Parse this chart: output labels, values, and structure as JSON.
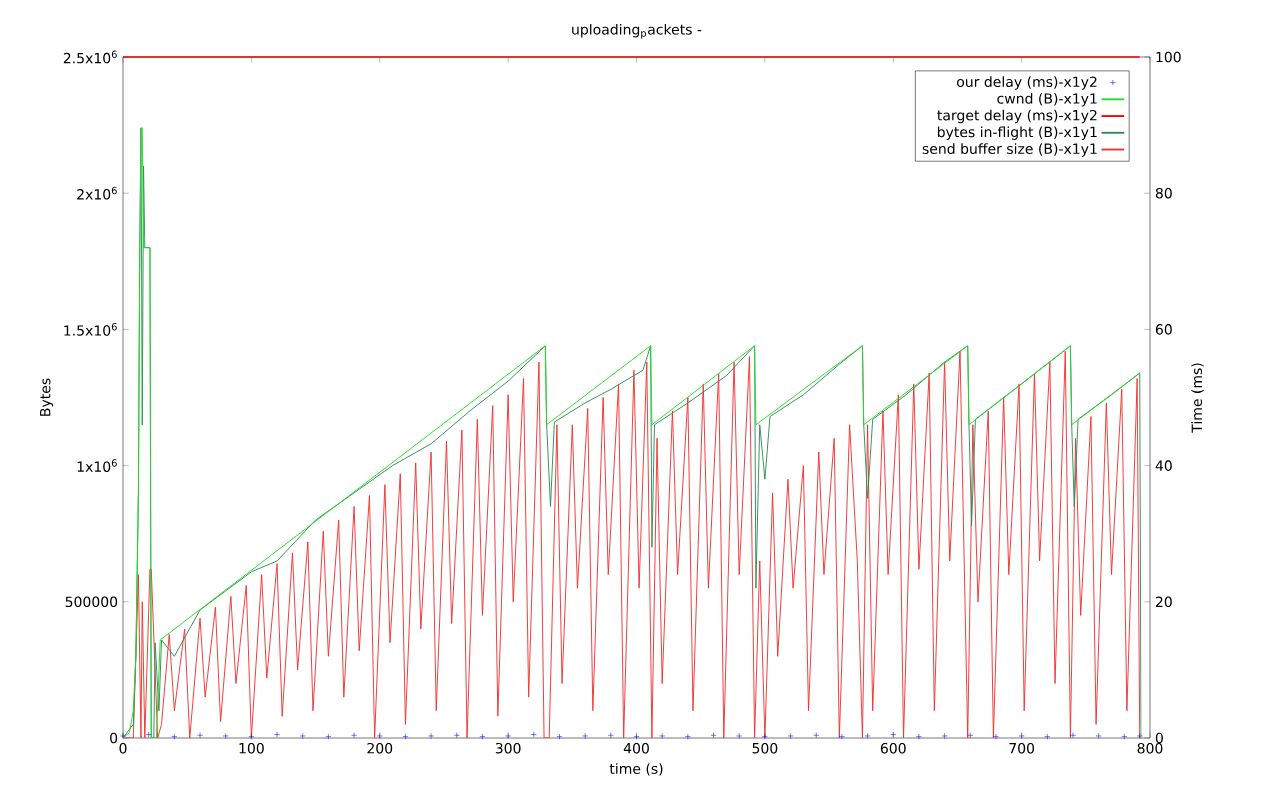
{
  "chart_data": {
    "type": "line",
    "title": "uploading$_{p}$ackets -",
    "xlabel": "time (s)",
    "ylabel": "Bytes",
    "y2label": "Time (ms)",
    "xlim": [
      0,
      800
    ],
    "xticks": [
      0,
      100,
      200,
      300,
      400,
      500,
      600,
      700,
      800
    ],
    "ylim": [
      0,
      2500000
    ],
    "yticks": [
      0,
      500000,
      {
        "value": 1000000,
        "label": "1x10$^{6}$"
      },
      {
        "value": 1500000,
        "label": "1.5x10$^{6}$"
      },
      {
        "value": 2000000,
        "label": "2x10$^{6}$"
      },
      {
        "value": 2500000,
        "label": "2.5x10$^{6}$"
      }
    ],
    "y2lim": [
      0,
      100
    ],
    "y2ticks": [
      0,
      20,
      40,
      60,
      80,
      100
    ],
    "legend": "top right",
    "series": [
      {
        "name": "our delay (ms)-x1y2",
        "type": "scatter",
        "marker": "cross",
        "axis": "y2",
        "color": "#0000ff",
        "x": [
          0,
          20,
          40,
          60,
          80,
          100,
          120,
          140,
          160,
          180,
          200,
          220,
          240,
          260,
          280,
          300,
          320,
          340,
          360,
          380,
          400,
          420,
          440,
          460,
          480,
          500,
          520,
          540,
          560,
          580,
          600,
          620,
          640,
          660,
          680,
          700,
          720,
          740,
          760,
          780,
          792
        ],
        "values": [
          0.3,
          0.5,
          0.2,
          0.4,
          0.3,
          0.2,
          0.5,
          0.3,
          0.2,
          0.4,
          0.3,
          0.2,
          0.3,
          0.4,
          0.2,
          0.3,
          0.5,
          0.2,
          0.3,
          0.4,
          0.2,
          0.3,
          0.2,
          0.4,
          0.3,
          0.2,
          0.3,
          0.4,
          0.2,
          0.3,
          0.5,
          0.2,
          0.3,
          0.4,
          0.2,
          0.3,
          0.2,
          0.4,
          0.3,
          0.2,
          0.3
        ]
      },
      {
        "name": "cwnd (B)-x1y1",
        "color": "#22dd22",
        "x": [
          0,
          5,
          8,
          10,
          11,
          12,
          13,
          14,
          15,
          16,
          21,
          22,
          26,
          29,
          329,
          330,
          411,
          412,
          492,
          493,
          576,
          577,
          658,
          659,
          738,
          739,
          792
        ],
        "values": [
          0,
          20000,
          100000,
          300000,
          600000,
          900000,
          1700000,
          2240000,
          2240000,
          1800000,
          1800000,
          0,
          0,
          360000,
          1440000,
          1150000,
          1440000,
          1150000,
          1440000,
          1150000,
          1440000,
          1150000,
          1440000,
          1150000,
          1440000,
          1150000,
          1340000
        ]
      },
      {
        "name": "target delay (ms)-x1y2",
        "axis": "y2",
        "color": "#ff0000",
        "x": [
          0,
          792
        ],
        "values": [
          100,
          100
        ]
      },
      {
        "name": "bytes in-flight (B)-x1y1",
        "color": "#2e8b57",
        "x": [
          0,
          8,
          10,
          12,
          13,
          14,
          15,
          16,
          17,
          21,
          22,
          24,
          25,
          28,
          30,
          40,
          60,
          80,
          100,
          120,
          150,
          180,
          210,
          240,
          270,
          300,
          329,
          330,
          333,
          336,
          360,
          380,
          405,
          411,
          412,
          414,
          440,
          470,
          492,
          493,
          496,
          500,
          504,
          530,
          560,
          576,
          577,
          580,
          584,
          610,
          640,
          658,
          659,
          661,
          664,
          700,
          738,
          739,
          741,
          744,
          770,
          792,
          793
        ],
        "values": [
          0,
          50000,
          300000,
          900000,
          1800000,
          2240000,
          1150000,
          2100000,
          1800000,
          1800000,
          0,
          0,
          350000,
          100000,
          360000,
          300000,
          470000,
          540000,
          610000,
          650000,
          800000,
          900000,
          1000000,
          1080000,
          1200000,
          1310000,
          1440000,
          1150000,
          850000,
          1160000,
          1230000,
          1280000,
          1350000,
          1440000,
          700000,
          1150000,
          1230000,
          1330000,
          1440000,
          550000,
          1150000,
          950000,
          1180000,
          1260000,
          1380000,
          1440000,
          1150000,
          880000,
          1170000,
          1260000,
          1380000,
          1440000,
          1150000,
          780000,
          1170000,
          1300000,
          1440000,
          1150000,
          850000,
          1170000,
          1260000,
          1340000,
          0
        ]
      },
      {
        "name": "send buffer size (B)-x1y1",
        "color": "#f03232",
        "x": [
          0,
          8,
          12,
          14,
          15,
          17,
          21,
          22,
          27,
          30,
          36,
          40,
          48,
          52,
          60,
          64,
          72,
          76,
          84,
          88,
          96,
          100,
          108,
          112,
          120,
          124,
          132,
          136,
          144,
          148,
          156,
          160,
          168,
          172,
          180,
          184,
          192,
          196,
          204,
          208,
          216,
          220,
          228,
          232,
          240,
          244,
          252,
          256,
          264,
          268,
          276,
          280,
          288,
          292,
          300,
          304,
          312,
          316,
          324,
          328,
          332,
          338,
          342,
          350,
          354,
          362,
          366,
          374,
          378,
          386,
          390,
          398,
          402,
          408,
          412,
          416,
          420,
          428,
          432,
          440,
          444,
          452,
          456,
          464,
          468,
          476,
          480,
          488,
          492,
          496,
          500,
          506,
          510,
          518,
          522,
          530,
          534,
          542,
          546,
          554,
          558,
          566,
          572,
          576,
          580,
          584,
          592,
          596,
          604,
          608,
          616,
          620,
          628,
          632,
          640,
          644,
          652,
          658,
          662,
          666,
          674,
          678,
          686,
          690,
          698,
          702,
          710,
          714,
          722,
          726,
          734,
          738,
          742,
          746,
          754,
          758,
          766,
          770,
          778,
          782,
          790,
          792
        ],
        "values": [
          0,
          0,
          600000,
          0,
          500000,
          0,
          620000,
          620000,
          0,
          50000,
          380000,
          100000,
          400000,
          0,
          440000,
          150000,
          480000,
          60000,
          520000,
          200000,
          560000,
          0,
          600000,
          220000,
          640000,
          80000,
          680000,
          250000,
          720000,
          100000,
          760000,
          300000,
          800000,
          150000,
          850000,
          320000,
          890000,
          0,
          930000,
          350000,
          970000,
          50000,
          1010000,
          400000,
          1050000,
          100000,
          1090000,
          420000,
          1130000,
          0,
          1170000,
          450000,
          1220000,
          80000,
          1260000,
          500000,
          1320000,
          150000,
          1380000,
          0,
          0,
          1150000,
          200000,
          1150000,
          550000,
          1210000,
          100000,
          1250000,
          600000,
          1300000,
          0,
          1350000,
          550000,
          1380000,
          0,
          1100000,
          200000,
          1200000,
          600000,
          1250000,
          100000,
          1300000,
          550000,
          1340000,
          0,
          1380000,
          600000,
          1400000,
          0,
          650000,
          0,
          900000,
          300000,
          950000,
          550000,
          1000000,
          100000,
          1050000,
          600000,
          1100000,
          0,
          1150000,
          650000,
          0,
          1150000,
          100000,
          1200000,
          600000,
          1260000,
          0,
          1300000,
          620000,
          1340000,
          100000,
          1380000,
          650000,
          1420000,
          0,
          1150000,
          500000,
          1200000,
          0,
          1250000,
          600000,
          1300000,
          100000,
          1340000,
          650000,
          1380000,
          200000,
          1420000,
          0,
          1100000,
          450000,
          1180000,
          50000,
          1230000,
          600000,
          1280000,
          100000,
          1320000,
          0
        ]
      }
    ]
  }
}
